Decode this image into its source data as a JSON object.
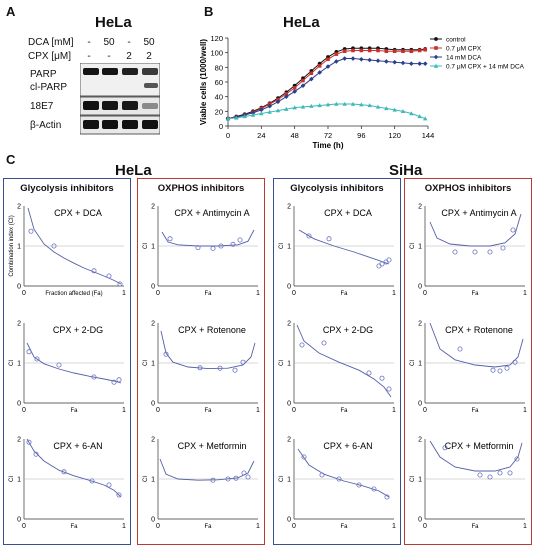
{
  "panel_a": {
    "letter": "A",
    "cell_line": "HeLa",
    "conditions": [
      {
        "label": "DCA [mM]",
        "values": [
          "-",
          "50",
          "-",
          "50"
        ]
      },
      {
        "label": "CPX [μM]",
        "values": [
          "-",
          "-",
          "2",
          "2"
        ]
      }
    ],
    "blots": [
      "PARP",
      "cl-PARP",
      "18E7",
      "β-Actin"
    ]
  },
  "panel_b": {
    "letter": "B",
    "title": "HeLa"
  },
  "panel_c": {
    "letter": "C",
    "cell_lines": [
      "HeLa",
      "SiHa"
    ],
    "group_titles": [
      "Glycolysis inhibitors",
      "OXPHOS inhibitors",
      "Glycolysis inhibitors",
      "OXPHOS inhibitors"
    ]
  },
  "chart_data": [
    {
      "type": "line",
      "id": "growth",
      "title": "HeLa",
      "xlabel": "Time (h)",
      "ylabel": "Viable cells (1000/well)",
      "xlim": [
        0,
        144
      ],
      "ylim": [
        0,
        120
      ],
      "xticks": [
        0,
        24,
        48,
        72,
        96,
        120,
        144
      ],
      "yticks": [
        0,
        20,
        40,
        60,
        80,
        100,
        120
      ],
      "legend_position": "top-right",
      "x": [
        0,
        6,
        12,
        18,
        24,
        30,
        36,
        42,
        48,
        54,
        60,
        66,
        72,
        78,
        84,
        90,
        96,
        102,
        108,
        114,
        120,
        126,
        132,
        138,
        142
      ],
      "series": [
        {
          "name": "control",
          "color": "#111111",
          "marker": "circle",
          "values": [
            10,
            13,
            16,
            20,
            25,
            31,
            38,
            46,
            55,
            65,
            75,
            85,
            94,
            101,
            105,
            106,
            106,
            106,
            106,
            105,
            104,
            104,
            104,
            104,
            105
          ]
        },
        {
          "name": "0.7 μM CPX",
          "color": "#c8302b",
          "marker": "square",
          "values": [
            10,
            12,
            15,
            19,
            24,
            30,
            36,
            44,
            52,
            62,
            72,
            82,
            91,
            98,
            102,
            103,
            103,
            103,
            103,
            102,
            102,
            102,
            102,
            103,
            104
          ]
        },
        {
          "name": "14 mM DCA",
          "color": "#2a3f8f",
          "marker": "diamond",
          "values": [
            10,
            12,
            15,
            18,
            22,
            27,
            33,
            40,
            47,
            55,
            64,
            73,
            81,
            88,
            92,
            92,
            91,
            90,
            89,
            88,
            87,
            86,
            85,
            85,
            85
          ]
        },
        {
          "name": "0.7 μM CPX + 14 mM DCA",
          "color": "#3db8b8",
          "marker": "triangle",
          "values": [
            10,
            11,
            13,
            15,
            17,
            19,
            21,
            23,
            25,
            26,
            27,
            28,
            29,
            30,
            30,
            30,
            29,
            28,
            26,
            24,
            22,
            20,
            17,
            13,
            10
          ]
        }
      ]
    },
    {
      "type": "scatter",
      "id": "hela-cpx-dca",
      "title": "CPX + DCA",
      "ylabel": "Combination index (CI)",
      "xlabel": "Fraction affected (Fa)",
      "ylim": [
        0,
        2
      ],
      "xlim": [
        0,
        1
      ],
      "points": [
        [
          0.07,
          1.37
        ],
        [
          0.3,
          1.0
        ],
        [
          0.7,
          0.38
        ],
        [
          0.85,
          0.25
        ],
        [
          0.96,
          0.05
        ]
      ],
      "curve": [
        [
          0.04,
          1.95
        ],
        [
          0.1,
          1.42
        ],
        [
          0.2,
          1.05
        ],
        [
          0.3,
          0.85
        ],
        [
          0.4,
          0.7
        ],
        [
          0.5,
          0.57
        ],
        [
          0.6,
          0.45
        ],
        [
          0.7,
          0.35
        ],
        [
          0.8,
          0.25
        ],
        [
          0.9,
          0.14
        ],
        [
          0.97,
          0.05
        ]
      ]
    },
    {
      "type": "scatter",
      "id": "hela-cpx-anti",
      "title": "CPX + Antimycin A",
      "ylabel": "CI",
      "xlabel": "Fa",
      "ylim": [
        0,
        2
      ],
      "xlim": [
        0,
        1
      ],
      "points": [
        [
          0.12,
          1.18
        ],
        [
          0.4,
          0.96
        ],
        [
          0.55,
          0.94
        ],
        [
          0.63,
          1.0
        ],
        [
          0.75,
          1.04
        ],
        [
          0.82,
          1.15
        ]
      ],
      "curve": [
        [
          0.04,
          1.35
        ],
        [
          0.1,
          1.1
        ],
        [
          0.2,
          1.03
        ],
        [
          0.4,
          1.0
        ],
        [
          0.6,
          1.0
        ],
        [
          0.8,
          1.03
        ],
        [
          0.9,
          1.12
        ],
        [
          0.96,
          1.4
        ]
      ]
    },
    {
      "type": "scatter",
      "id": "hela-cpx-2dg",
      "title": "CPX + 2-DG",
      "ylabel": "CI",
      "xlabel": "Fa",
      "ylim": [
        0,
        2
      ],
      "xlim": [
        0,
        1
      ],
      "points": [
        [
          0.05,
          1.28
        ],
        [
          0.13,
          1.1
        ],
        [
          0.35,
          0.95
        ],
        [
          0.7,
          0.65
        ],
        [
          0.9,
          0.52
        ],
        [
          0.95,
          0.58
        ]
      ],
      "curve": [
        [
          0.03,
          1.5
        ],
        [
          0.1,
          1.15
        ],
        [
          0.2,
          0.98
        ],
        [
          0.35,
          0.85
        ],
        [
          0.5,
          0.75
        ],
        [
          0.65,
          0.67
        ],
        [
          0.8,
          0.6
        ],
        [
          0.9,
          0.55
        ],
        [
          0.97,
          0.5
        ]
      ]
    },
    {
      "type": "scatter",
      "id": "hela-cpx-rot",
      "title": "CPX + Rotenone",
      "ylabel": "CI",
      "xlabel": "Fa",
      "ylim": [
        0,
        2
      ],
      "xlim": [
        0,
        1
      ],
      "points": [
        [
          0.08,
          1.22
        ],
        [
          0.42,
          0.88
        ],
        [
          0.62,
          0.87
        ],
        [
          0.77,
          0.82
        ],
        [
          0.85,
          1.02
        ]
      ],
      "curve": [
        [
          0.03,
          1.8
        ],
        [
          0.08,
          1.25
        ],
        [
          0.15,
          1.02
        ],
        [
          0.3,
          0.9
        ],
        [
          0.5,
          0.86
        ],
        [
          0.7,
          0.87
        ],
        [
          0.85,
          0.95
        ],
        [
          0.93,
          1.15
        ],
        [
          0.97,
          1.5
        ]
      ]
    },
    {
      "type": "scatter",
      "id": "hela-cpx-6an",
      "title": "CPX + 6-AN",
      "ylabel": "CI",
      "xlabel": "Fa",
      "ylim": [
        0,
        2
      ],
      "xlim": [
        0,
        1
      ],
      "points": [
        [
          0.05,
          1.92
        ],
        [
          0.12,
          1.62
        ],
        [
          0.4,
          1.18
        ],
        [
          0.68,
          0.95
        ],
        [
          0.85,
          0.85
        ],
        [
          0.95,
          0.6
        ]
      ],
      "curve": [
        [
          0.03,
          2.0
        ],
        [
          0.1,
          1.7
        ],
        [
          0.2,
          1.45
        ],
        [
          0.35,
          1.22
        ],
        [
          0.5,
          1.08
        ],
        [
          0.65,
          0.97
        ],
        [
          0.8,
          0.85
        ],
        [
          0.9,
          0.72
        ],
        [
          0.97,
          0.55
        ]
      ]
    },
    {
      "type": "scatter",
      "id": "hela-cpx-met",
      "title": "CPX + Metformin",
      "ylabel": "CI",
      "xlabel": "Fa",
      "ylim": [
        0,
        2
      ],
      "xlim": [
        0,
        1
      ],
      "points": [
        [
          0.55,
          0.97
        ],
        [
          0.7,
          1.0
        ],
        [
          0.78,
          1.02
        ],
        [
          0.86,
          1.15
        ],
        [
          0.9,
          1.05
        ]
      ],
      "curve": [
        [
          0.02,
          1.5
        ],
        [
          0.08,
          1.12
        ],
        [
          0.2,
          1.0
        ],
        [
          0.4,
          0.97
        ],
        [
          0.6,
          0.98
        ],
        [
          0.8,
          1.03
        ],
        [
          0.9,
          1.15
        ],
        [
          0.96,
          1.45
        ]
      ]
    },
    {
      "type": "scatter",
      "id": "siha-cpx-dca",
      "title": "CPX + DCA",
      "ylabel": "CI",
      "xlabel": "Fa",
      "ylim": [
        0,
        2
      ],
      "xlim": [
        0,
        1
      ],
      "points": [
        [
          0.15,
          1.25
        ],
        [
          0.35,
          1.18
        ],
        [
          0.85,
          0.5
        ],
        [
          0.88,
          0.55
        ],
        [
          0.92,
          0.6
        ],
        [
          0.95,
          0.65
        ]
      ],
      "curve": [
        [
          0.05,
          1.4
        ],
        [
          0.2,
          1.18
        ],
        [
          0.4,
          1.0
        ],
        [
          0.6,
          0.85
        ],
        [
          0.8,
          0.68
        ],
        [
          0.95,
          0.55
        ]
      ]
    },
    {
      "type": "scatter",
      "id": "siha-cpx-anti",
      "title": "CPX + Antimycin A",
      "ylabel": "CI",
      "xlabel": "Fa",
      "ylim": [
        0,
        2
      ],
      "xlim": [
        0,
        1
      ],
      "points": [
        [
          0.3,
          0.85
        ],
        [
          0.5,
          0.85
        ],
        [
          0.65,
          0.85
        ],
        [
          0.78,
          0.95
        ],
        [
          0.88,
          1.4
        ]
      ],
      "curve": [
        [
          0.05,
          1.6
        ],
        [
          0.12,
          1.2
        ],
        [
          0.25,
          1.05
        ],
        [
          0.45,
          1.0
        ],
        [
          0.65,
          1.0
        ],
        [
          0.8,
          1.08
        ],
        [
          0.9,
          1.3
        ],
        [
          0.96,
          1.8
        ]
      ]
    },
    {
      "type": "scatter",
      "id": "siha-cpx-2dg",
      "title": "CPX + 2-DG",
      "ylabel": "CI",
      "xlabel": "Fa",
      "ylim": [
        0,
        2
      ],
      "xlim": [
        0,
        1
      ],
      "points": [
        [
          0.08,
          1.45
        ],
        [
          0.3,
          1.5
        ],
        [
          0.75,
          0.75
        ],
        [
          0.88,
          0.62
        ],
        [
          0.95,
          0.35
        ]
      ],
      "curve": [
        [
          0.03,
          1.95
        ],
        [
          0.1,
          1.55
        ],
        [
          0.25,
          1.25
        ],
        [
          0.45,
          1.02
        ],
        [
          0.65,
          0.82
        ],
        [
          0.8,
          0.6
        ],
        [
          0.9,
          0.4
        ],
        [
          0.97,
          0.15
        ]
      ]
    },
    {
      "type": "scatter",
      "id": "siha-cpx-rot",
      "title": "CPX + Rotenone",
      "ylabel": "CI",
      "xlabel": "Fa",
      "ylim": [
        0,
        2
      ],
      "xlim": [
        0,
        1
      ],
      "points": [
        [
          0.35,
          1.35
        ],
        [
          0.68,
          0.82
        ],
        [
          0.75,
          0.8
        ],
        [
          0.82,
          0.87
        ],
        [
          0.9,
          1.02
        ]
      ],
      "curve": [
        [
          0.05,
          2.0
        ],
        [
          0.15,
          1.35
        ],
        [
          0.3,
          1.08
        ],
        [
          0.5,
          0.95
        ],
        [
          0.7,
          0.9
        ],
        [
          0.85,
          0.95
        ],
        [
          0.93,
          1.15
        ],
        [
          0.98,
          1.6
        ]
      ]
    },
    {
      "type": "scatter",
      "id": "siha-cpx-6an",
      "title": "CPX + 6-AN",
      "ylabel": "CI",
      "xlabel": "Fa",
      "ylim": [
        0,
        2
      ],
      "xlim": [
        0,
        1
      ],
      "points": [
        [
          0.1,
          1.55
        ],
        [
          0.28,
          1.1
        ],
        [
          0.45,
          1.0
        ],
        [
          0.65,
          0.85
        ],
        [
          0.8,
          0.75
        ],
        [
          0.93,
          0.55
        ]
      ],
      "curve": [
        [
          0.04,
          1.75
        ],
        [
          0.15,
          1.35
        ],
        [
          0.3,
          1.12
        ],
        [
          0.5,
          0.95
        ],
        [
          0.7,
          0.82
        ],
        [
          0.85,
          0.7
        ],
        [
          0.95,
          0.55
        ]
      ]
    },
    {
      "type": "scatter",
      "id": "siha-cpx-met",
      "title": "CPX + Metformin",
      "ylabel": "CI",
      "xlabel": "Fa",
      "ylim": [
        0,
        2
      ],
      "xlim": [
        0,
        1
      ],
      "points": [
        [
          0.2,
          1.78
        ],
        [
          0.55,
          1.1
        ],
        [
          0.65,
          1.05
        ],
        [
          0.75,
          1.15
        ],
        [
          0.85,
          1.15
        ],
        [
          0.92,
          1.5
        ]
      ],
      "curve": [
        [
          0.05,
          1.95
        ],
        [
          0.15,
          1.55
        ],
        [
          0.3,
          1.3
        ],
        [
          0.5,
          1.2
        ],
        [
          0.7,
          1.2
        ],
        [
          0.85,
          1.3
        ],
        [
          0.93,
          1.55
        ],
        [
          0.97,
          1.9
        ]
      ]
    }
  ]
}
